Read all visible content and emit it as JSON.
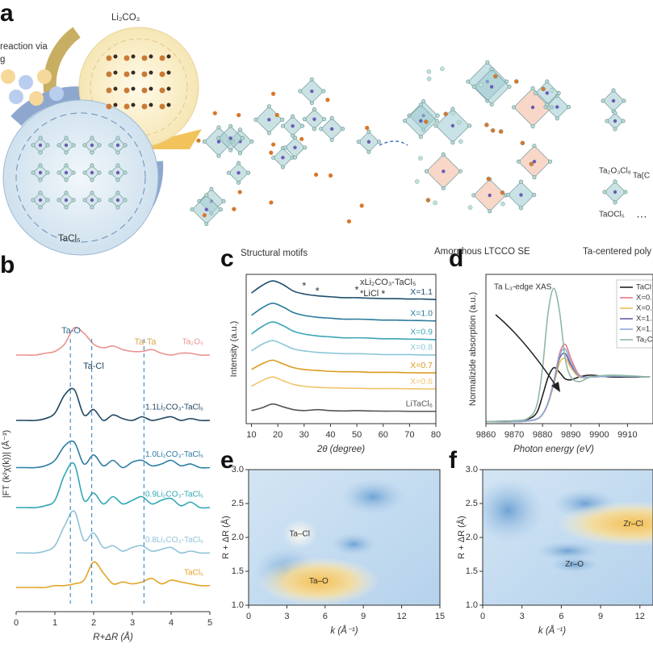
{
  "schematic": {
    "panel_label": "a",
    "reaction_text": "reaction via",
    "reaction_text_2": "g",
    "li2co3": "Li₂CO₃",
    "tacl5": "TaCl₅",
    "structural_motifs": "Structural motifs",
    "amorphous": "Amorphous LTCCO SE",
    "polyhedra": "Ta-centered poly",
    "motif_1": "Ta₂O₃Cl₈",
    "motif_2": "Ta(C",
    "motif_3": "TaOCl₅",
    "ellipsis": "…"
  },
  "chart_data": [
    {
      "type": "line",
      "panel_label": "b",
      "xlabel": "R+ΔR (Å)",
      "ylabel": "|FT (k²χ(k))| (Å⁻³)",
      "xlim": [
        0,
        5
      ],
      "xticks": [
        0,
        1,
        2,
        3,
        4,
        5
      ],
      "ylim": [
        0,
        8
      ],
      "x": [
        0,
        0.25,
        0.5,
        0.75,
        1,
        1.25,
        1.5,
        1.75,
        2,
        2.25,
        2.5,
        2.75,
        3,
        3.25,
        3.5,
        3.75,
        4,
        4.25,
        4.5,
        4.75,
        5
      ],
      "series": [
        {
          "name": "Ta₂O₅",
          "color": "#e8928f",
          "values": [
            7.0,
            7.0,
            7.0,
            7.05,
            7.1,
            7.3,
            7.75,
            7.6,
            7.3,
            7.2,
            7.25,
            7.15,
            7.1,
            7.1,
            7.15,
            7.05,
            7.0,
            7.05,
            7.05,
            7.0,
            7.0
          ]
        },
        {
          "name": "1.1Li₂CO₃-TaCl₅",
          "color": "#1d4560",
          "values": [
            5.2,
            5.2,
            5.2,
            5.25,
            5.4,
            5.9,
            6.05,
            5.35,
            5.5,
            5.2,
            5.35,
            5.25,
            5.2,
            5.3,
            5.2,
            5.25,
            5.3,
            5.2,
            5.25,
            5.2,
            5.2
          ]
        },
        {
          "name": "1.0Li₂CO₃-TaCl₅",
          "color": "#2b7da3",
          "values": [
            3.9,
            3.9,
            3.9,
            3.95,
            4.1,
            4.5,
            4.6,
            4.0,
            4.25,
            3.95,
            4.1,
            3.9,
            4.05,
            4.1,
            3.95,
            4.0,
            4.1,
            3.95,
            4.0,
            3.9,
            3.9
          ]
        },
        {
          "name": "0.9Li₂CO₃-TaCl₅",
          "color": "#2fa7b4",
          "values": [
            2.8,
            2.8,
            2.8,
            2.85,
            3.0,
            3.7,
            4.0,
            3.0,
            3.2,
            2.9,
            3.1,
            2.9,
            3.0,
            3.1,
            2.9,
            3.0,
            3.05,
            2.85,
            2.95,
            2.8,
            2.8
          ]
        },
        {
          "name": "0.8Li₂CO₃-TaCl₅",
          "color": "#8ec3d6",
          "values": [
            1.55,
            1.55,
            1.55,
            1.6,
            1.75,
            2.3,
            2.7,
            1.9,
            2.1,
            1.7,
            1.75,
            1.6,
            1.7,
            1.75,
            1.6,
            1.65,
            1.7,
            1.55,
            1.6,
            1.55,
            1.55
          ]
        },
        {
          "name": "TaCl₅",
          "color": "#e2a323",
          "values": [
            0.6,
            0.6,
            0.6,
            0.6,
            0.65,
            0.65,
            0.7,
            0.8,
            1.3,
            1.0,
            0.7,
            0.75,
            0.7,
            0.75,
            0.85,
            0.7,
            0.8,
            0.75,
            0.7,
            0.65,
            0.65
          ]
        }
      ],
      "reference_lines": [
        1.4,
        1.95,
        3.3
      ],
      "annotations": [
        "Ta-O",
        "Ta-Cl",
        "Ta-Ta"
      ]
    },
    {
      "type": "line",
      "panel_label": "c",
      "xlabel": "2θ (degree)",
      "ylabel": "Intensity (a.u.)",
      "xlim": [
        8,
        80
      ],
      "xticks": [
        10,
        20,
        30,
        40,
        50,
        60,
        70,
        80
      ],
      "ylim": [
        0,
        8
      ],
      "legend_title": "xLi₂CO₃-TaCl₅",
      "legend_note": "*LiCl",
      "peak_marker": "*",
      "peak_positions": [
        30,
        35,
        50,
        60
      ],
      "x": [
        10,
        14,
        18,
        22,
        26,
        30,
        35,
        40,
        45,
        50,
        55,
        60,
        65,
        70,
        75,
        80
      ],
      "series": [
        {
          "name": "X=1.1",
          "color": "#1f4e6e",
          "values": [
            7.0,
            7.4,
            7.65,
            7.45,
            7.1,
            6.95,
            6.85,
            6.8,
            6.75,
            6.75,
            6.72,
            6.7,
            6.7,
            6.68,
            6.68,
            6.65
          ]
        },
        {
          "name": "X=1.0",
          "color": "#2a7a9a",
          "values": [
            5.8,
            6.2,
            6.45,
            6.25,
            5.95,
            5.8,
            5.7,
            5.65,
            5.6,
            5.6,
            5.58,
            5.55,
            5.55,
            5.53,
            5.52,
            5.5
          ]
        },
        {
          "name": "X=0.9",
          "color": "#3aa5b5",
          "values": [
            4.8,
            5.2,
            5.45,
            5.25,
            4.95,
            4.8,
            4.7,
            4.65,
            4.6,
            4.6,
            4.58,
            4.55,
            4.55,
            4.53,
            4.52,
            4.5
          ]
        },
        {
          "name": "X=0.8",
          "color": "#8cc6d8",
          "values": [
            3.9,
            4.25,
            4.45,
            4.25,
            4.0,
            3.9,
            3.82,
            3.78,
            3.75,
            3.75,
            3.73,
            3.7,
            3.7,
            3.7,
            3.68,
            3.68
          ]
        },
        {
          "name": "X=0.7",
          "color": "#d99a1e",
          "values": [
            2.9,
            3.2,
            3.4,
            3.2,
            3.0,
            2.9,
            2.85,
            2.8,
            2.78,
            2.78,
            2.75,
            2.75,
            2.75,
            2.73,
            2.72,
            2.72
          ]
        },
        {
          "name": "X=0.6",
          "color": "#f0c46a",
          "values": [
            2.0,
            2.3,
            2.5,
            2.3,
            2.1,
            2.0,
            1.95,
            1.92,
            1.9,
            1.9,
            1.88,
            1.88,
            1.88,
            1.87,
            1.86,
            1.86
          ]
        },
        {
          "name": "LiTaCl₆",
          "color": "#555555",
          "values": [
            0.7,
            0.85,
            1.05,
            0.9,
            0.75,
            0.7,
            0.75,
            0.7,
            0.68,
            0.7,
            0.68,
            0.67,
            0.67,
            0.66,
            0.66,
            0.66
          ]
        }
      ]
    },
    {
      "type": "line",
      "panel_label": "d",
      "xlabel": "Photon energy (eV)",
      "ylabel": "Normalizide absorption (a.u.)",
      "xlim": [
        9860,
        9919
      ],
      "xticks": [
        9860,
        9870,
        9880,
        9890,
        9900,
        9910
      ],
      "ylim": [
        0,
        1.6
      ],
      "annotation": "Ta L₃-edge XAS",
      "x": [
        9860,
        9870,
        9875,
        9878,
        9880,
        9882,
        9884,
        9886,
        9888,
        9890,
        9893,
        9897,
        9905,
        9918
      ],
      "series": [
        {
          "name": "TaCl",
          "color": "#222222",
          "values": [
            0.02,
            0.03,
            0.05,
            0.12,
            0.3,
            0.5,
            0.6,
            0.55,
            0.48,
            0.47,
            0.5,
            0.52,
            0.5,
            0.5
          ]
        },
        {
          "name": "X=0.",
          "color": "#e87a8a",
          "values": [
            0.02,
            0.02,
            0.03,
            0.05,
            0.1,
            0.22,
            0.45,
            0.75,
            0.85,
            0.7,
            0.52,
            0.5,
            0.51,
            0.5
          ]
        },
        {
          "name": "X=0.",
          "color": "#e8c05a",
          "values": [
            0.02,
            0.02,
            0.03,
            0.05,
            0.1,
            0.22,
            0.42,
            0.65,
            0.7,
            0.6,
            0.5,
            0.5,
            0.51,
            0.5
          ]
        },
        {
          "name": "X=1.",
          "color": "#6a5aa8",
          "values": [
            0.02,
            0.02,
            0.03,
            0.05,
            0.1,
            0.23,
            0.45,
            0.7,
            0.75,
            0.63,
            0.51,
            0.5,
            0.51,
            0.5
          ]
        },
        {
          "name": "X=1.",
          "color": "#8fa8d8",
          "values": [
            0.02,
            0.02,
            0.03,
            0.05,
            0.1,
            0.23,
            0.46,
            0.73,
            0.8,
            0.66,
            0.51,
            0.5,
            0.51,
            0.5
          ]
        },
        {
          "name": "Ta₂C",
          "color": "#8fb8a8",
          "values": [
            0.02,
            0.03,
            0.06,
            0.2,
            0.6,
            1.2,
            1.45,
            1.2,
            0.7,
            0.5,
            0.45,
            0.5,
            0.52,
            0.5
          ]
        }
      ]
    },
    {
      "type": "contour",
      "panel_label": "e",
      "xlabel": "k (Å⁻¹)",
      "ylabel": "R + ΔR (Å)",
      "xlim": [
        0,
        15
      ],
      "xticks": [
        0,
        3,
        6,
        9,
        12,
        15
      ],
      "ylim": [
        1,
        3
      ],
      "yticks": [
        {
          "value": 1,
          "label": "1.0"
        },
        1.5,
        {
          "value": 2,
          "label": "2.0"
        },
        2.5,
        {
          "value": 3,
          "label": "3.0"
        }
      ],
      "hotspots": [
        {
          "label": "Ta–Cl",
          "k": 4,
          "R": 2.05
        },
        {
          "label": "Ta–O",
          "k": 5.5,
          "R": 1.35
        }
      ]
    },
    {
      "type": "contour",
      "panel_label": "f",
      "xlabel": "k (Å⁻¹)",
      "ylabel": "R + ΔR (Å)",
      "xlim": [
        0,
        13
      ],
      "xticks": [
        0,
        3,
        6,
        9,
        12
      ],
      "ylim": [
        1,
        3
      ],
      "yticks": [
        {
          "value": 1,
          "label": "1.0"
        },
        1.5,
        {
          "value": 2,
          "label": "2.0"
        },
        2.5,
        {
          "value": 3,
          "label": "3.0"
        }
      ],
      "hotspots": [
        {
          "label": "Zr–Cl",
          "k": 11.5,
          "R": 2.2
        },
        {
          "label": "Zr–O",
          "k": 7,
          "R": 1.6
        }
      ]
    }
  ]
}
